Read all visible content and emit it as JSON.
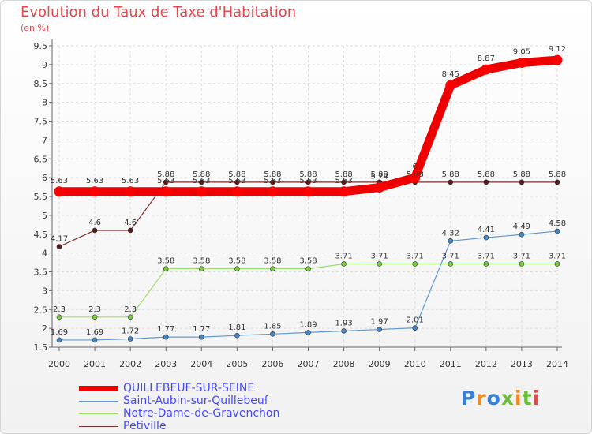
{
  "title": "Evolution du Taux de Taxe d'Habitation",
  "subtitle": "(en %)",
  "logo": "Proxiti",
  "colors": {
    "title": "#e5484d",
    "legend_text": "#4646ff",
    "axis": "#666666",
    "gridline": "#dddddd"
  },
  "chart_data": {
    "type": "line",
    "title": "Evolution du Taux de Taxe d'Habitation",
    "subtitle": "(en %)",
    "xlabel": "",
    "ylabel": "(en %)",
    "x": [
      "2000",
      "2001",
      "2002",
      "2003",
      "2004",
      "2005",
      "2006",
      "2007",
      "2008",
      "2009",
      "2010",
      "2011",
      "2012",
      "2013",
      "2014"
    ],
    "ylim": [
      1.5,
      9.5
    ],
    "yticks": [
      "1.5",
      "2",
      "2.5",
      "3",
      "3.5",
      "4",
      "4.5",
      "5",
      "5.5",
      "6",
      "6.5",
      "7",
      "7.5",
      "8",
      "8.5",
      "9",
      "9.5"
    ],
    "grid": true,
    "legend_position": "bottom-left",
    "series": [
      {
        "name": "Petiville",
        "color": "#7b2c2c",
        "marker": "#5a1a1a",
        "values": [
          4.17,
          4.6,
          4.6,
          5.88,
          5.88,
          5.88,
          5.88,
          5.88,
          5.88,
          5.88,
          5.88,
          5.88,
          5.88,
          5.88,
          5.88
        ],
        "labels": [
          "4.17",
          "4.6",
          "4.6",
          "5.88",
          "5.88",
          "5.88",
          "5.88",
          "5.88",
          "5.88",
          "5.88",
          "5.88",
          "5.88",
          "5.88",
          "5.88",
          "5.88"
        ]
      },
      {
        "name": "Notre-Dame-de-Gravenchon",
        "color": "#99dd66",
        "marker": "#77cc44",
        "values": [
          2.3,
          2.3,
          2.3,
          3.58,
          3.58,
          3.58,
          3.58,
          3.58,
          3.71,
          3.71,
          3.71,
          3.71,
          3.71,
          3.71,
          3.71
        ],
        "labels": [
          "2.3",
          "2.3",
          "2.3",
          "3.58",
          "3.58",
          "3.58",
          "3.58",
          "3.58",
          "3.71",
          "3.71",
          "3.71",
          "3.71",
          "3.71",
          "3.71",
          "3.71"
        ]
      },
      {
        "name": "Saint-Aubin-sur-Quillebeuf",
        "color": "#6699cc",
        "marker": "#4488cc",
        "values": [
          1.69,
          1.69,
          1.72,
          1.77,
          1.77,
          1.81,
          1.85,
          1.89,
          1.93,
          1.97,
          2.01,
          4.32,
          4.41,
          4.49,
          4.58
        ],
        "labels": [
          "1.69",
          "1.69",
          "1.72",
          "1.77",
          "1.77",
          "1.81",
          "1.85",
          "1.89",
          "1.93",
          "1.97",
          "2.01",
          "4.32",
          "4.41",
          "4.49",
          "4.58"
        ]
      },
      {
        "name": "QUILLEBEUF-SUR-SEINE",
        "color": "#ee0000",
        "marker": "#ff0000",
        "values": [
          5.63,
          5.63,
          5.63,
          5.63,
          5.63,
          5.63,
          5.63,
          5.63,
          5.63,
          5.74,
          6.0,
          8.45,
          8.87,
          9.05,
          9.12
        ],
        "labels": [
          "5.63",
          "5.63",
          "5.63",
          "5.63",
          "5.63",
          "5.63",
          "5.63",
          "5.63",
          "5.63",
          "5.74",
          "6",
          "8.45",
          "8.87",
          "9.05",
          "9.12"
        ]
      }
    ],
    "legend": [
      {
        "name": "QUILLEBEUF-SUR-SEINE",
        "color": "#ee0000",
        "width": 7
      },
      {
        "name": "Saint-Aubin-sur-Quillebeuf",
        "color": "#6699cc",
        "width": 1
      },
      {
        "name": "Notre-Dame-de-Gravenchon",
        "color": "#99dd66",
        "width": 1
      },
      {
        "name": "Petiville",
        "color": "#7b2c2c",
        "width": 1
      }
    ]
  }
}
